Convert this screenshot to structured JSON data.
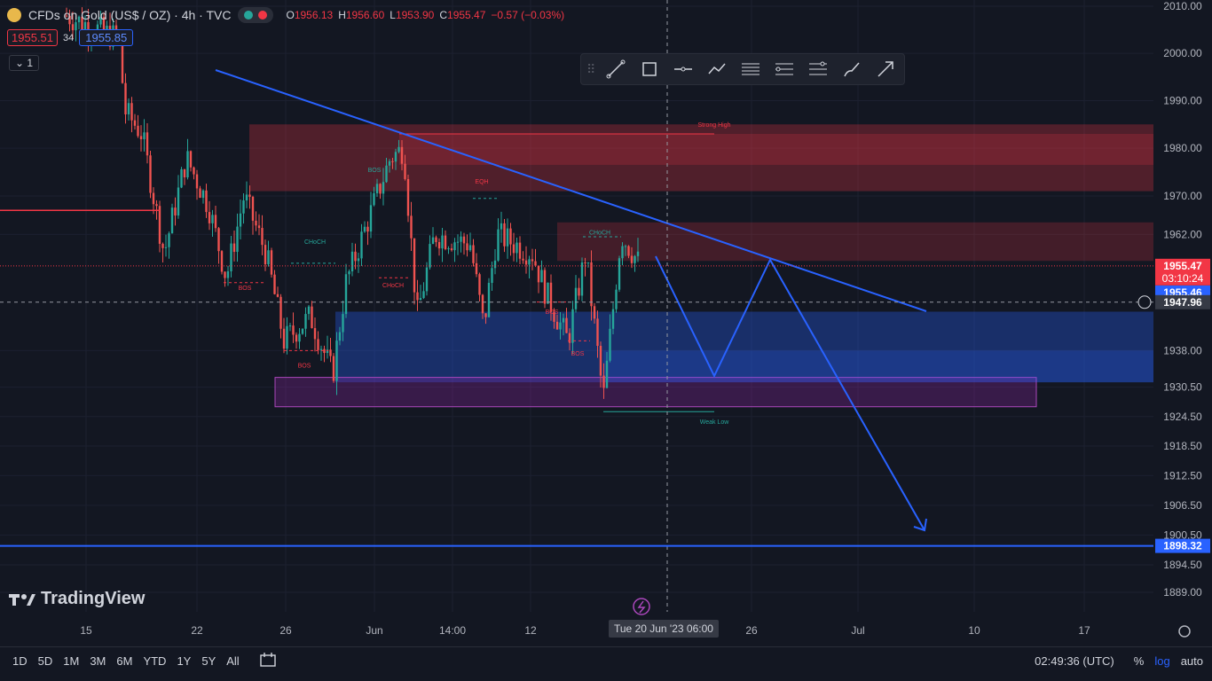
{
  "header": {
    "title": "CFDs on Gold (US$ / OZ) · 4h · TVC",
    "open_label": "O",
    "open": "1956.13",
    "high_label": "H",
    "high": "1956.60",
    "low_label": "L",
    "low": "1953.90",
    "close_label": "C",
    "close": "1955.47",
    "change": "−0.57 (−0.03%)",
    "sell_price": "1955.51",
    "spread": "34",
    "buy_price": "1955.85",
    "indicator_count": "1"
  },
  "toolbar": {
    "icons": [
      "grip-icon",
      "trend-line-icon",
      "rectangle-icon",
      "horizontal-line-icon",
      "path-icon",
      "parallel-channel-icon",
      "fib-retracement-icon",
      "fib-extension-icon",
      "brush-icon",
      "arrow-icon"
    ]
  },
  "chart_data": {
    "type": "candlestick",
    "symbol": "CFDs on Gold (US$ / OZ)",
    "timeframe": "4h",
    "y_axis_scale": "log",
    "ylim": [
      1884,
      2012
    ],
    "y_ticks": [
      "2010.00",
      "2000.00",
      "1990.00",
      "1980.00",
      "1970.00",
      "1962.00",
      "1938.00",
      "1930.50",
      "1924.50",
      "1918.50",
      "1912.50",
      "1906.50",
      "1900.50",
      "1894.50",
      "1889.00"
    ],
    "x_ticks": [
      "15",
      "22",
      "26",
      "Jun",
      "14:00",
      "12",
      "26",
      "Jul",
      "10",
      "17"
    ],
    "crosshair_x_label": "Tue 20 Jun '23   06:00",
    "crosshair_y_label": "1947.96",
    "last_price": "1955.47",
    "countdown": "03:10:24",
    "bid_label": "1955.46",
    "hline_price": "1898.32",
    "hline_color": "#2962ff",
    "annotations": [
      "Strong High",
      "EQH",
      "CHoCH",
      "CHoCH",
      "CHoCH",
      "BOS",
      "BOS",
      "CHoCH",
      "BOS",
      "BOS",
      "Weak Low"
    ],
    "zones": [
      {
        "name": "supply-zone-upper",
        "from": 1971,
        "to": 1985,
        "color": "#f23645"
      },
      {
        "name": "supply-zone-lower",
        "from": 1956.5,
        "to": 1964.5,
        "color": "#f23645"
      },
      {
        "name": "demand-zone",
        "from": 1931.5,
        "to": 1946,
        "color": "#2962ff"
      },
      {
        "name": "purple-zone",
        "from": 1926.5,
        "to": 1932.5,
        "color": "#9c27b0"
      }
    ]
  },
  "bottom_bar": {
    "ranges": [
      "1D",
      "5D",
      "1M",
      "3M",
      "6M",
      "YTD",
      "1Y",
      "5Y",
      "All"
    ],
    "time": "02:49:36 (UTC)",
    "percent": "%",
    "log": "log",
    "auto": "auto"
  },
  "branding": {
    "name": "TradingView"
  },
  "colors": {
    "up": "#26a69a",
    "down": "#ef5350",
    "accent": "#2962ff"
  }
}
